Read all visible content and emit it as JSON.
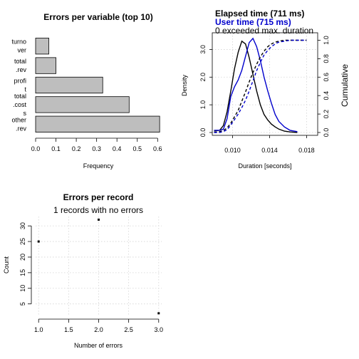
{
  "charts": [
    {
      "type": "bar",
      "title": "Errors per variable (top 10)",
      "xlabel": "Frequency",
      "categories": [
        [
          "turno",
          "ver"
        ],
        [
          "total",
          ".rev"
        ],
        [
          "profi",
          "t"
        ],
        [
          "total",
          ".cost",
          "s"
        ],
        [
          "other",
          ".rev"
        ]
      ],
      "values": [
        0.065,
        0.1,
        0.33,
        0.46,
        0.61
      ],
      "xlim": [
        0,
        0.62
      ],
      "xticks": [
        "0.0",
        "0.1",
        "0.2",
        "0.3",
        "0.4",
        "0.5",
        "0.6"
      ],
      "xtick_values": [
        0,
        0.1,
        0.2,
        0.3,
        0.4,
        0.5,
        0.6
      ],
      "bar_color": "#bebebe"
    },
    {
      "type": "line",
      "title_lines": [
        {
          "text": "Elapsed time (711 ms)",
          "color": "#000000",
          "bold": true
        },
        {
          "text": "User time (715 ms)",
          "color": "#0000cc",
          "bold": true
        },
        {
          "text": "0 exceeded max. duration",
          "color": "#000000",
          "bold": false
        }
      ],
      "xlabel": "Duration [seconds]",
      "ylabel_left": "Density",
      "ylabel_right": "Cumulative",
      "xlim": [
        0.0078,
        0.0192
      ],
      "xticks": [
        "0.010",
        "0.014",
        "0.018"
      ],
      "xtick_values": [
        0.01,
        0.014,
        0.018
      ],
      "ylim_left": [
        0,
        3.5
      ],
      "yticks_left": [
        "0.0",
        "1.0",
        "2.0",
        "3.0"
      ],
      "ytick_values_left": [
        0,
        1,
        2,
        3
      ],
      "ylim_right": [
        0,
        1.05
      ],
      "yticks_right": [
        "0.0",
        "0.2",
        "0.4",
        "0.6",
        "0.8",
        "1.0"
      ],
      "ytick_values_right": [
        0,
        0.2,
        0.4,
        0.6,
        0.8,
        1.0
      ],
      "series": [
        {
          "color": "#000000",
          "dash": false,
          "axis": "left",
          "x": [
            0.008,
            0.0086,
            0.009,
            0.0094,
            0.0098,
            0.0102,
            0.0106,
            0.011,
            0.0114,
            0.0118,
            0.0122,
            0.0126,
            0.013,
            0.0134,
            0.0138,
            0.0142,
            0.0146,
            0.015,
            0.0156,
            0.0162,
            0.017
          ],
          "y": [
            0.05,
            0.08,
            0.25,
            0.75,
            1.5,
            2.3,
            2.9,
            3.3,
            3.2,
            2.7,
            2.1,
            1.5,
            1.0,
            0.65,
            0.45,
            0.3,
            0.2,
            0.12,
            0.05,
            0.02,
            0.0
          ]
        },
        {
          "color": "#0000cc",
          "dash": false,
          "axis": "left",
          "x": [
            0.008,
            0.0086,
            0.009,
            0.0094,
            0.0098,
            0.0102,
            0.0106,
            0.011,
            0.0114,
            0.0118,
            0.0122,
            0.0126,
            0.013,
            0.0134,
            0.0138,
            0.0142,
            0.0146,
            0.015,
            0.0156,
            0.0162,
            0.017
          ],
          "y": [
            0.08,
            0.08,
            0.12,
            0.5,
            1.3,
            1.65,
            1.9,
            2.25,
            2.75,
            3.25,
            3.4,
            3.1,
            2.6,
            2.0,
            1.5,
            1.05,
            0.65,
            0.4,
            0.2,
            0.08,
            0.03
          ]
        },
        {
          "color": "#000000",
          "dash": true,
          "axis": "right",
          "x": [
            0.008,
            0.0086,
            0.009,
            0.0094,
            0.0098,
            0.0102,
            0.0106,
            0.011,
            0.0114,
            0.0118,
            0.0122,
            0.0126,
            0.013,
            0.0134,
            0.0138,
            0.0142,
            0.0146,
            0.015,
            0.0156,
            0.0162,
            0.017,
            0.018
          ],
          "y": [
            0.0,
            0.01,
            0.02,
            0.05,
            0.1,
            0.17,
            0.24,
            0.34,
            0.44,
            0.55,
            0.65,
            0.74,
            0.82,
            0.88,
            0.93,
            0.96,
            0.98,
            0.99,
            1.0,
            1.0,
            1.0,
            1.0
          ]
        },
        {
          "color": "#0000cc",
          "dash": true,
          "axis": "right",
          "x": [
            0.008,
            0.0086,
            0.009,
            0.0094,
            0.0098,
            0.0102,
            0.0106,
            0.011,
            0.0114,
            0.0118,
            0.0122,
            0.0126,
            0.013,
            0.0134,
            0.0138,
            0.0142,
            0.0146,
            0.015,
            0.0156,
            0.0162,
            0.017,
            0.018
          ],
          "y": [
            0.0,
            0.0,
            0.01,
            0.03,
            0.08,
            0.14,
            0.2,
            0.27,
            0.35,
            0.45,
            0.56,
            0.67,
            0.76,
            0.84,
            0.89,
            0.93,
            0.96,
            0.98,
            0.99,
            1.0,
            1.0,
            1.0
          ]
        }
      ]
    },
    {
      "type": "scatter",
      "title": "Errors per record",
      "subtitle": "1 records with no errors",
      "xlabel": "Number of errors",
      "ylabel": "Count",
      "xlim": [
        0.95,
        3.05
      ],
      "xticks": [
        "1.0",
        "1.5",
        "2.0",
        "2.5",
        "3.0"
      ],
      "xtick_values": [
        1.0,
        1.5,
        2.0,
        2.5,
        3.0
      ],
      "ylim": [
        1.5,
        33
      ],
      "yticks": [
        "5",
        "10",
        "15",
        "20",
        "25",
        "30"
      ],
      "ytick_values": [
        5,
        10,
        15,
        20,
        25,
        30
      ],
      "x": [
        1,
        2,
        3
      ],
      "y": [
        25,
        32,
        2
      ]
    }
  ]
}
